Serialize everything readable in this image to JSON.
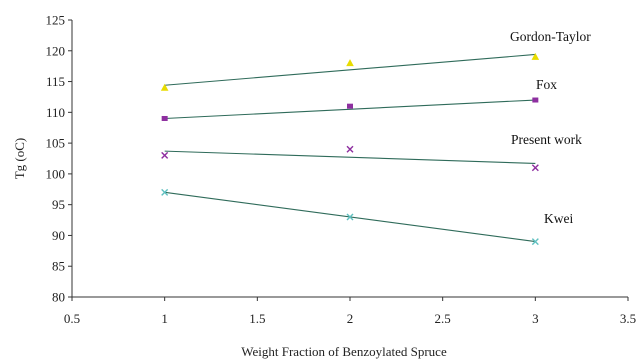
{
  "chart_data": {
    "type": "scatter",
    "title": "",
    "xlabel": "Weight Fraction of Benzoylated Spruce",
    "ylabel": "Tg (oC)",
    "xlim": [
      0.5,
      3.5
    ],
    "ylim": [
      80,
      125
    ],
    "x_ticks": [
      "0.5",
      "1",
      "1.5",
      "2",
      "2.5",
      "3",
      "3.5"
    ],
    "y_ticks": [
      "80",
      "85",
      "90",
      "95",
      "100",
      "105",
      "110",
      "115",
      "120",
      "125"
    ],
    "grid": false,
    "legend": "inline labels",
    "series": [
      {
        "name": "Gordon-Taylor",
        "marker": "triangle",
        "color": "#e8dc00",
        "x": [
          1,
          2,
          3
        ],
        "y": [
          114,
          118,
          119
        ],
        "fit": [
          114.4,
          119.4
        ]
      },
      {
        "name": "Fox",
        "marker": "square",
        "color": "#8e2fa0",
        "x": [
          1,
          2,
          3
        ],
        "y": [
          109,
          111,
          112
        ],
        "fit": [
          109.0,
          112.0
        ]
      },
      {
        "name": "Present work",
        "marker": "x",
        "color": "#8e2fa0",
        "x": [
          1,
          2,
          3
        ],
        "y": [
          103,
          104,
          101
        ],
        "fit": [
          103.7,
          101.7
        ]
      },
      {
        "name": "Kwei",
        "marker": "x",
        "color": "#5fc0c0",
        "x": [
          1,
          2,
          3
        ],
        "y": [
          97,
          93,
          89
        ],
        "fit": [
          97.0,
          89.0
        ]
      }
    ],
    "colors": {
      "fit_line": "#2f6b5a",
      "axis": "#333333"
    }
  }
}
